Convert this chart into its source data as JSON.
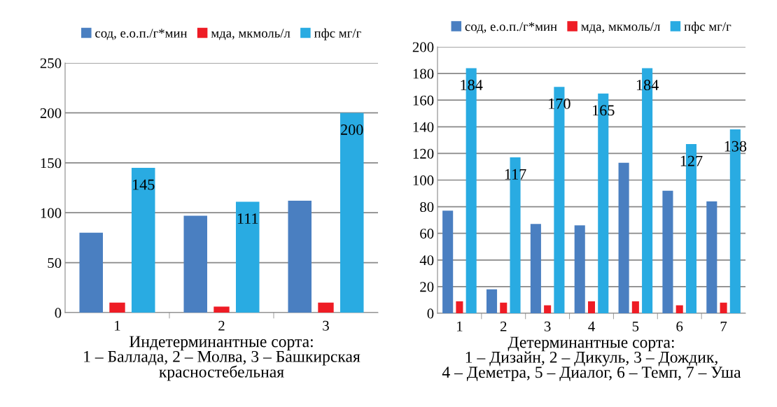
{
  "chart_data": [
    {
      "type": "bar",
      "categories": [
        "1",
        "2",
        "3"
      ],
      "xlabel": "Индетерминантные сорта:\n1 – Баллада, 2 – Молва, 3 – Башкирская\nкрасностебельная",
      "ylim": [
        0,
        250
      ],
      "yticks": [
        0,
        50,
        100,
        150,
        200,
        250
      ],
      "grid": "y",
      "legend": "top",
      "series": [
        {
          "name": "сод, е.о.п./г*мин",
          "color": "#4a7fc1",
          "values": [
            80,
            97,
            112
          ]
        },
        {
          "name": "мда, мкмоль/л",
          "color": "#ee1c25",
          "values": [
            10,
            6,
            10
          ]
        },
        {
          "name": "пфс мг/г",
          "color": "#29abe2",
          "values": [
            145,
            111,
            200
          ],
          "value_labels": [
            "145",
            "111",
            "200"
          ]
        }
      ]
    },
    {
      "type": "bar",
      "categories": [
        "1",
        "2",
        "3",
        "4",
        "5",
        "6",
        "7"
      ],
      "xlabel": "Детерминантные сорта:\n1 – Дизайн, 2 – Дикуль, 3 – Дождик,\n4 – Деметра, 5 – Диалог, 6 – Темп, 7 – Уша",
      "ylim": [
        0,
        200
      ],
      "yticks": [
        0,
        20,
        40,
        60,
        80,
        100,
        120,
        140,
        160,
        180,
        200
      ],
      "grid": "y",
      "legend": "top",
      "series": [
        {
          "name": "сод, е.о.п./г*мин",
          "color": "#4a7fc1",
          "values": [
            77,
            18,
            67,
            66,
            113,
            92,
            84
          ]
        },
        {
          "name": "мда, мкмоль/л",
          "color": "#ee1c25",
          "values": [
            9,
            8,
            6,
            9,
            9,
            6,
            8
          ]
        },
        {
          "name": "пфс мг/г",
          "color": "#29abe2",
          "values": [
            184,
            117,
            170,
            165,
            184,
            127,
            138
          ],
          "value_labels": [
            "184",
            "117",
            "170",
            "165",
            "184",
            "127",
            "138"
          ]
        }
      ]
    }
  ]
}
